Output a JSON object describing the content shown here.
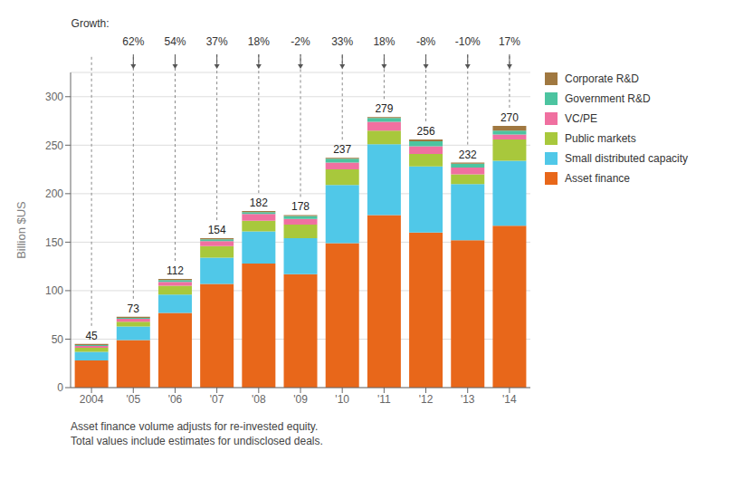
{
  "chart_data": {
    "type": "bar",
    "stacked": true,
    "grid": true,
    "legend": "right",
    "ylabel": "Billion $US",
    "categories": [
      "2004",
      "'05",
      "'06",
      "'07",
      "'08",
      "'09",
      "'10",
      "'11",
      "'12",
      "'13",
      "'14"
    ],
    "series": [
      {
        "name": "Asset finance",
        "color": "#E8671A",
        "values": [
          28,
          49,
          77,
          107,
          128,
          117,
          149,
          178,
          160,
          152,
          167
        ]
      },
      {
        "name": "Small distributed capacity",
        "color": "#50C8E8",
        "values": [
          9,
          14,
          19,
          27,
          33,
          37,
          60,
          73,
          68,
          58,
          67
        ]
      },
      {
        "name": "Public markets",
        "color": "#A8C83C",
        "values": [
          4,
          5,
          9,
          12,
          11,
          14,
          16,
          14,
          13,
          10,
          22
        ]
      },
      {
        "name": "VC/PE",
        "color": "#F070A0",
        "values": [
          2,
          3,
          4,
          5,
          7,
          6,
          7,
          9,
          8,
          7,
          5
        ]
      },
      {
        "name": "Government R&D",
        "color": "#4CC4A0",
        "values": [
          1,
          1,
          2,
          2,
          2,
          3,
          4,
          4,
          5,
          4,
          4
        ]
      },
      {
        "name": "Corporate R&D",
        "color": "#A07840",
        "values": [
          1,
          1,
          1,
          1,
          1,
          1,
          1,
          1,
          2,
          1,
          5
        ]
      }
    ],
    "totals": [
      45,
      73,
      112,
      154,
      182,
      178,
      237,
      279,
      256,
      232,
      270
    ],
    "growth_label": "Growth:",
    "growth": [
      "62%",
      "54%",
      "37%",
      "18%",
      "-2%",
      "33%",
      "18%",
      "-8%",
      "-10%",
      "17%"
    ],
    "ylim": [
      0,
      325
    ],
    "yticks": [
      0,
      50,
      100,
      150,
      200,
      250,
      300
    ],
    "footnotes": [
      "Asset finance volume adjusts for re-invested equity.",
      "Total values include estimates for undisclosed deals."
    ]
  }
}
